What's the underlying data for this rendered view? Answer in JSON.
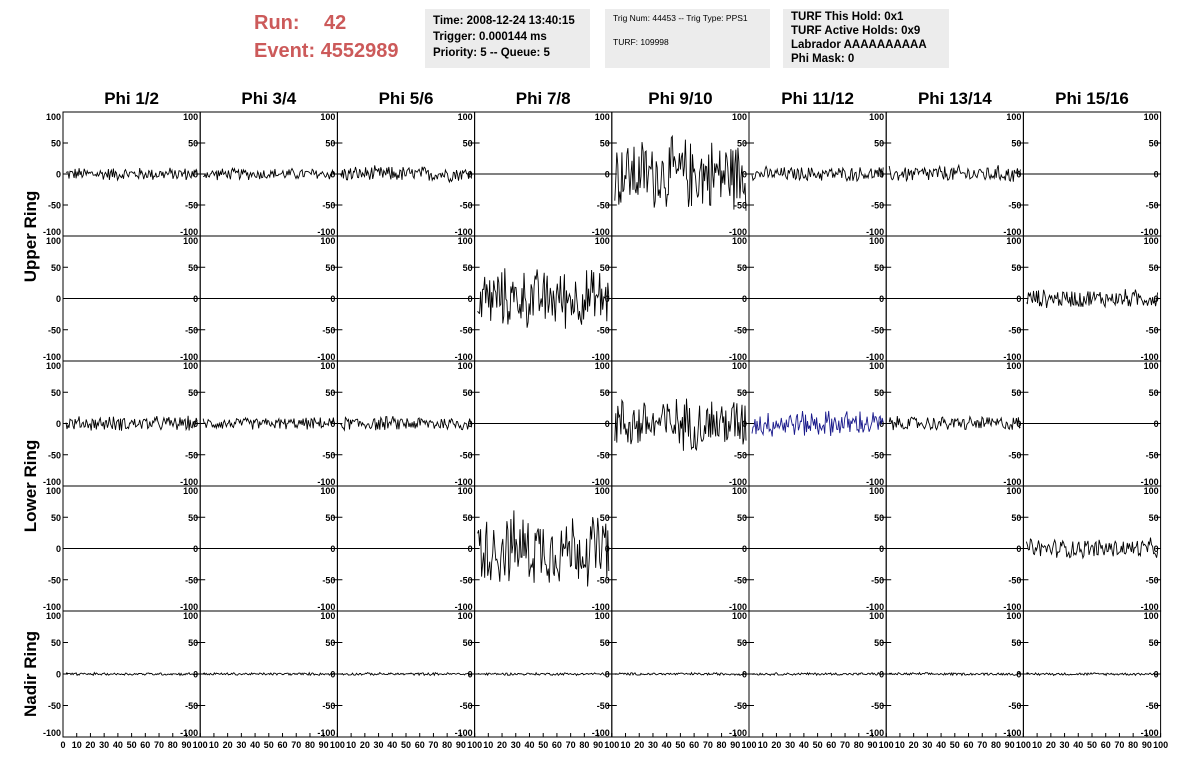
{
  "header": {
    "run_label": "Run:",
    "run_value": "42",
    "event_label": "Event:",
    "event_value": "4552989",
    "time": "Time: 2008-12-24 13:40:15",
    "trigger": "Trigger: 0.000144 ms",
    "priority": "Priority: 5 -- Queue: 5",
    "trig_num": "Trig Num: 44453 -- Trig Type: PPS1",
    "turf": "TURF: 109998",
    "turf_hold": "TURF This Hold: 0x1",
    "turf_active": "TURF Active Holds: 0x9",
    "labrador": "Labrador AAAAAAAAAA",
    "phi_mask": "Phi Mask: 0"
  },
  "colors": {
    "trace": "#000000",
    "highlight": "#1a1a8c",
    "run_text": "#cc5a5a",
    "box_bg": "#ececec"
  },
  "chart_data": {
    "type": "line",
    "columns": [
      "Phi 1/2",
      "Phi 3/4",
      "Phi 5/6",
      "Phi 7/8",
      "Phi 9/10",
      "Phi 11/12",
      "Phi 13/14",
      "Phi 15/16"
    ],
    "row_labels": [
      "Upper Ring",
      "Lower Ring",
      "Nadir Ring"
    ],
    "ylim": [
      -100,
      100
    ],
    "xlim": [
      0,
      100
    ],
    "y_ticks": [
      "100",
      "50",
      "0",
      "-50",
      "-100"
    ],
    "x_ticks": [
      "0",
      "10",
      "20",
      "30",
      "40",
      "50",
      "60",
      "70",
      "80",
      "90",
      "100"
    ],
    "panels": [
      [
        {
          "amp": 10
        },
        {
          "amp": 9
        },
        {
          "amp": 12
        },
        {
          "amp": 0
        },
        {
          "amp": 55
        },
        {
          "amp": 11
        },
        {
          "amp": 13
        },
        {
          "amp": 0
        }
      ],
      [
        {
          "amp": 0
        },
        {
          "amp": 0
        },
        {
          "amp": 0
        },
        {
          "amp": 45
        },
        {
          "amp": 0
        },
        {
          "amp": 0
        },
        {
          "amp": 0
        },
        {
          "amp": 14
        }
      ],
      [
        {
          "amp": 11
        },
        {
          "amp": 9
        },
        {
          "amp": 11
        },
        {
          "amp": 0
        },
        {
          "amp": 40
        },
        {
          "amp": 20,
          "highlight": true
        },
        {
          "amp": 11
        },
        {
          "amp": 0
        }
      ],
      [
        {
          "amp": 0
        },
        {
          "amp": 0
        },
        {
          "amp": 0
        },
        {
          "amp": 55
        },
        {
          "amp": 0
        },
        {
          "amp": 0
        },
        {
          "amp": 0
        },
        {
          "amp": 15
        }
      ],
      [
        {
          "amp": 2
        },
        {
          "amp": 2
        },
        {
          "amp": 2
        },
        {
          "amp": 2
        },
        {
          "amp": 2
        },
        {
          "amp": 2
        },
        {
          "amp": 2
        },
        {
          "amp": 2
        }
      ]
    ]
  }
}
